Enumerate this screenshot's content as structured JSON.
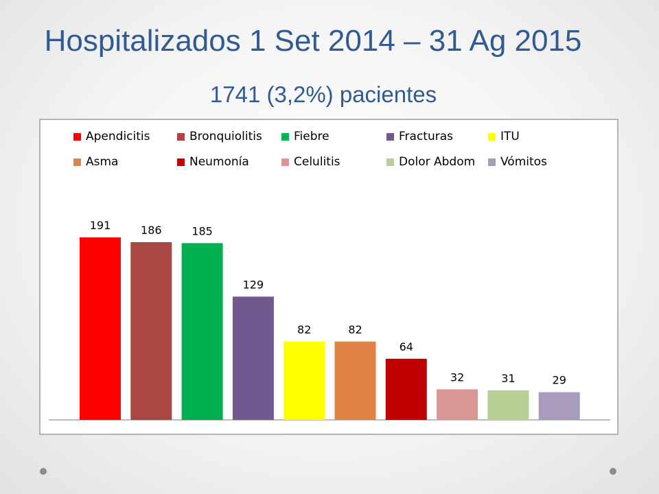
{
  "title": "Hospitalizados 1 Set 2014 – 31 Ag 2015",
  "subtitle": "1741 (3,2%) pacientes",
  "chart_data": {
    "type": "bar",
    "categories": [
      "Apendicitis",
      "Bronquiolitis",
      "Fiebre",
      "Fracturas",
      "ITU",
      "Asma",
      "Neumonía",
      "Celulitis",
      "Dolor Abdom",
      "Vómitos"
    ],
    "values": [
      191,
      186,
      185,
      129,
      82,
      82,
      64,
      32,
      31,
      29
    ],
    "colors": [
      "#ff0000",
      "#a94744",
      "#00b050",
      "#71588f",
      "#ffff00",
      "#de8344",
      "#c00000",
      "#d99694",
      "#b7d095",
      "#a99bbd"
    ],
    "data_labels": [
      "191",
      "186",
      "185",
      "129",
      "82",
      "82",
      "64",
      "32",
      "31",
      "29"
    ],
    "legend_position": "top",
    "grid": false,
    "xlabel": "",
    "ylabel": "",
    "ylim": [
      0,
      191
    ]
  }
}
